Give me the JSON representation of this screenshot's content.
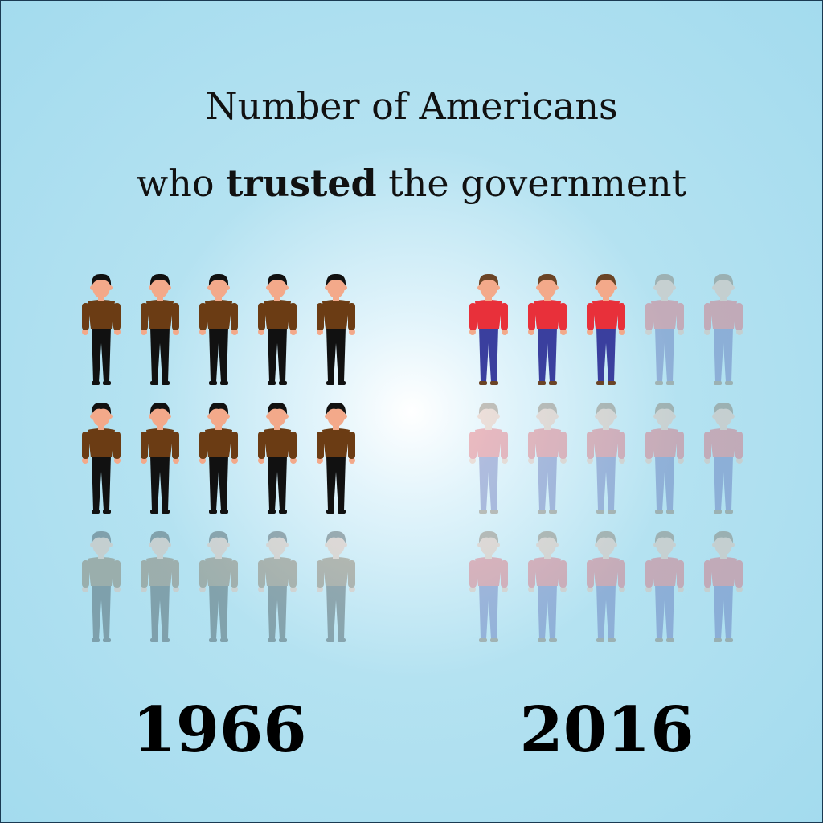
{
  "title": {
    "line1": "Number of Americans",
    "line2_pre": "who",
    "line2_bold": "trusted",
    "line2_post": "the government"
  },
  "chart_data": {
    "type": "pictogram",
    "panels": [
      {
        "label": "1966",
        "total_figures": 15,
        "highlighted_figures": 10,
        "colors": {
          "shirt": "#6b3c14",
          "pants": "#111111",
          "hair": "#111111",
          "skin": "#f3a98a"
        }
      },
      {
        "label": "2016",
        "total_figures": 15,
        "highlighted_figures": 3,
        "colors": {
          "shirt": "#e8303a",
          "pants": "#3a3f9e",
          "hair": "#6b4426",
          "skin": "#f3a98a"
        }
      }
    ],
    "faded_figure_opacity": 0.3
  }
}
